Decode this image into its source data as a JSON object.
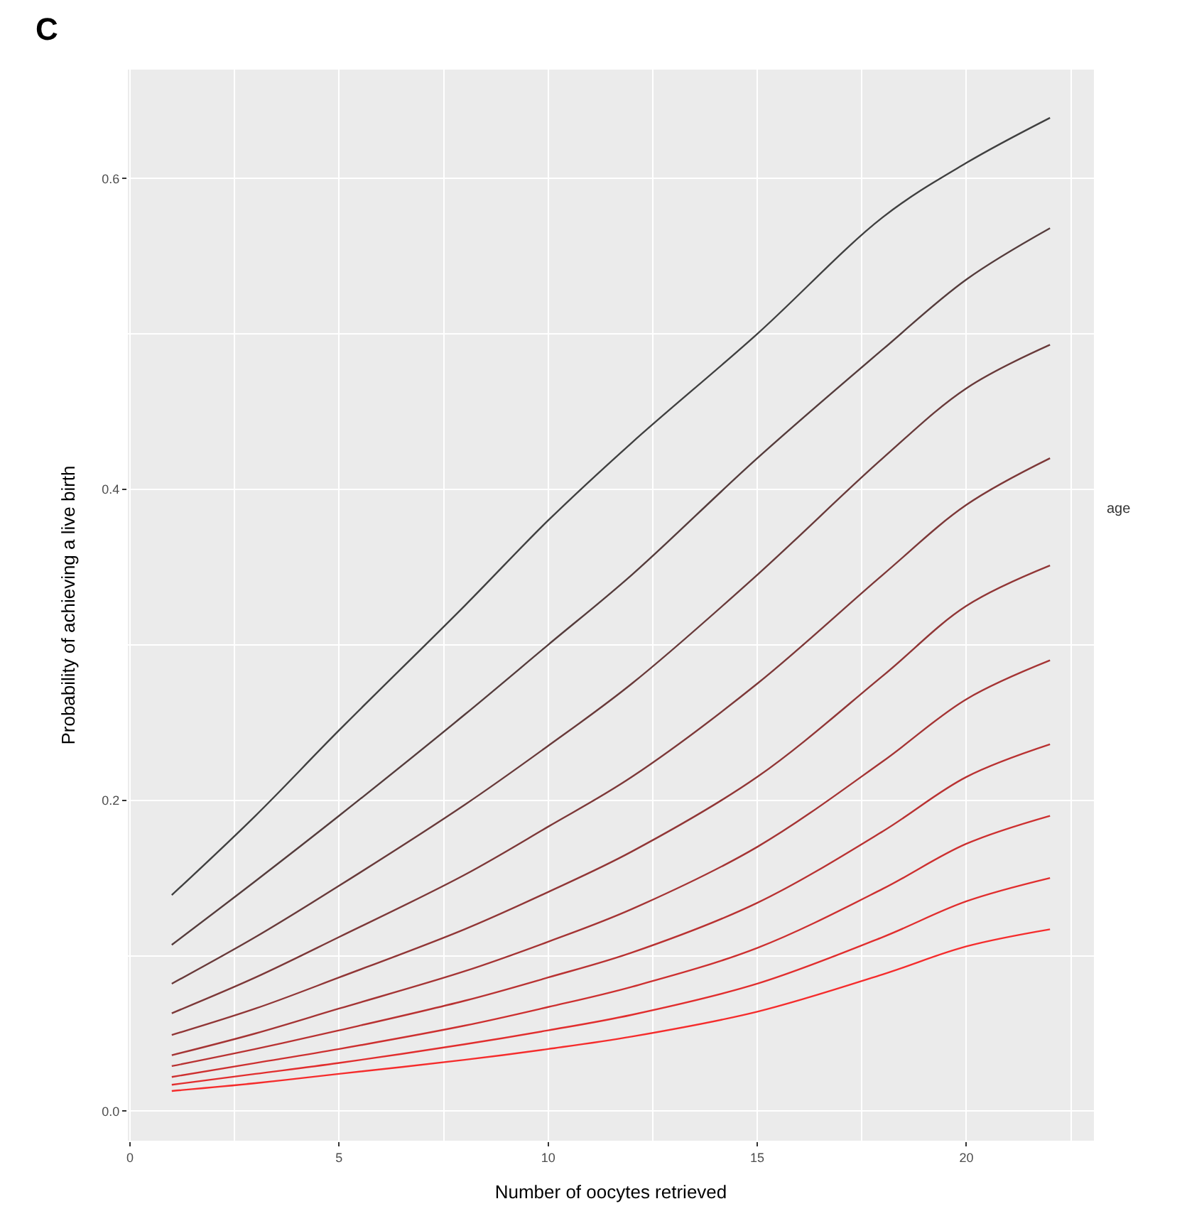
{
  "chart_data": {
    "type": "line",
    "title": "C",
    "xlabel": "Number of oocytes retrieved",
    "ylabel": "Probability of achieving a live birth",
    "annotations": [
      "age"
    ],
    "grid": true,
    "marker": "none",
    "line_style": "solid",
    "x": [
      1,
      3,
      5,
      8,
      10,
      12,
      15,
      18,
      20,
      22
    ],
    "xlim": [
      -0.05,
      23.05
    ],
    "xticks": [
      0,
      5,
      10,
      15,
      20
    ],
    "ylim": [
      -0.019,
      0.67
    ],
    "yticks": [
      {
        "value": 0,
        "label": "0.0"
      },
      {
        "value": 0.2,
        "label": "0.2"
      },
      {
        "value": 0.4,
        "label": "0.4"
      },
      {
        "value": 0.6,
        "label": "0.6"
      }
    ],
    "series": [
      {
        "color": "#404040",
        "values": [
          0.139,
          0.19,
          0.245,
          0.325,
          0.38,
          0.43,
          0.5,
          0.575,
          0.61,
          0.639
        ]
      },
      {
        "color": "#553c3c",
        "values": [
          0.107,
          0.148,
          0.19,
          0.255,
          0.3,
          0.345,
          0.42,
          0.49,
          0.535,
          0.568
        ]
      },
      {
        "color": "#693a3a",
        "values": [
          0.082,
          0.112,
          0.145,
          0.197,
          0.235,
          0.275,
          0.345,
          0.42,
          0.465,
          0.493
        ]
      },
      {
        "color": "#7d3838",
        "values": [
          0.063,
          0.086,
          0.112,
          0.152,
          0.183,
          0.215,
          0.275,
          0.345,
          0.39,
          0.42
        ]
      },
      {
        "color": "#913636",
        "values": [
          0.049,
          0.066,
          0.086,
          0.117,
          0.141,
          0.167,
          0.215,
          0.28,
          0.325,
          0.351
        ]
      },
      {
        "color": "#a53434",
        "values": [
          0.036,
          0.05,
          0.066,
          0.09,
          0.109,
          0.13,
          0.17,
          0.225,
          0.265,
          0.29
        ]
      },
      {
        "color": "#b93232",
        "values": [
          0.029,
          0.04,
          0.052,
          0.071,
          0.086,
          0.102,
          0.134,
          0.18,
          0.215,
          0.236
        ]
      },
      {
        "color": "#cd3030",
        "values": [
          0.022,
          0.031,
          0.04,
          0.055,
          0.067,
          0.08,
          0.105,
          0.143,
          0.172,
          0.19
        ]
      },
      {
        "color": "#e12e2e",
        "values": [
          0.017,
          0.024,
          0.031,
          0.043,
          0.052,
          0.062,
          0.082,
          0.112,
          0.135,
          0.15
        ]
      },
      {
        "color": "#f52c2c",
        "values": [
          0.013,
          0.018,
          0.024,
          0.033,
          0.04,
          0.048,
          0.064,
          0.088,
          0.106,
          0.117
        ]
      }
    ]
  }
}
